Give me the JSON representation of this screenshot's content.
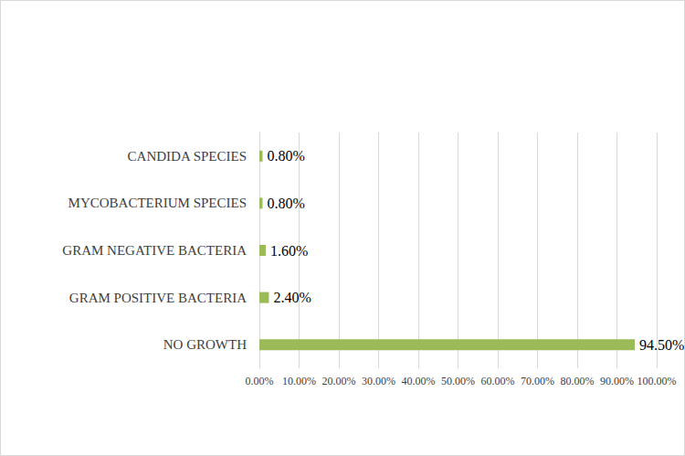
{
  "chart_data": {
    "type": "bar",
    "orientation": "horizontal",
    "categories": [
      "NO GROWTH",
      "GRAM POSITIVE BACTERIA",
      "GRAM NEGATIVE BACTERIA",
      "MYCOBACTERIUM SPECIES",
      "CANDIDA SPECIES"
    ],
    "values": [
      94.5,
      2.4,
      1.6,
      0.8,
      0.8
    ],
    "value_labels": [
      "94.50%",
      "2.40%",
      "1.60%",
      "0.80%",
      "0.80%"
    ],
    "data_labels": true,
    "color": "#9bbb59",
    "xlim": [
      0,
      100
    ],
    "xticks": [
      {
        "value": 0,
        "label": "0.00%"
      },
      {
        "value": 10,
        "label": "10.00%"
      },
      {
        "value": 20,
        "label": "20.00%"
      },
      {
        "value": 30,
        "label": "30.00%"
      },
      {
        "value": 40,
        "label": "40.00%"
      },
      {
        "value": 50,
        "label": "50.00%"
      },
      {
        "value": 60,
        "label": "60.00%"
      },
      {
        "value": 70,
        "label": "70.00%"
      },
      {
        "value": 80,
        "label": "80.00%"
      },
      {
        "value": 90,
        "label": "90.00%"
      },
      {
        "value": 100,
        "label": "100.00%"
      }
    ],
    "grid": true
  }
}
